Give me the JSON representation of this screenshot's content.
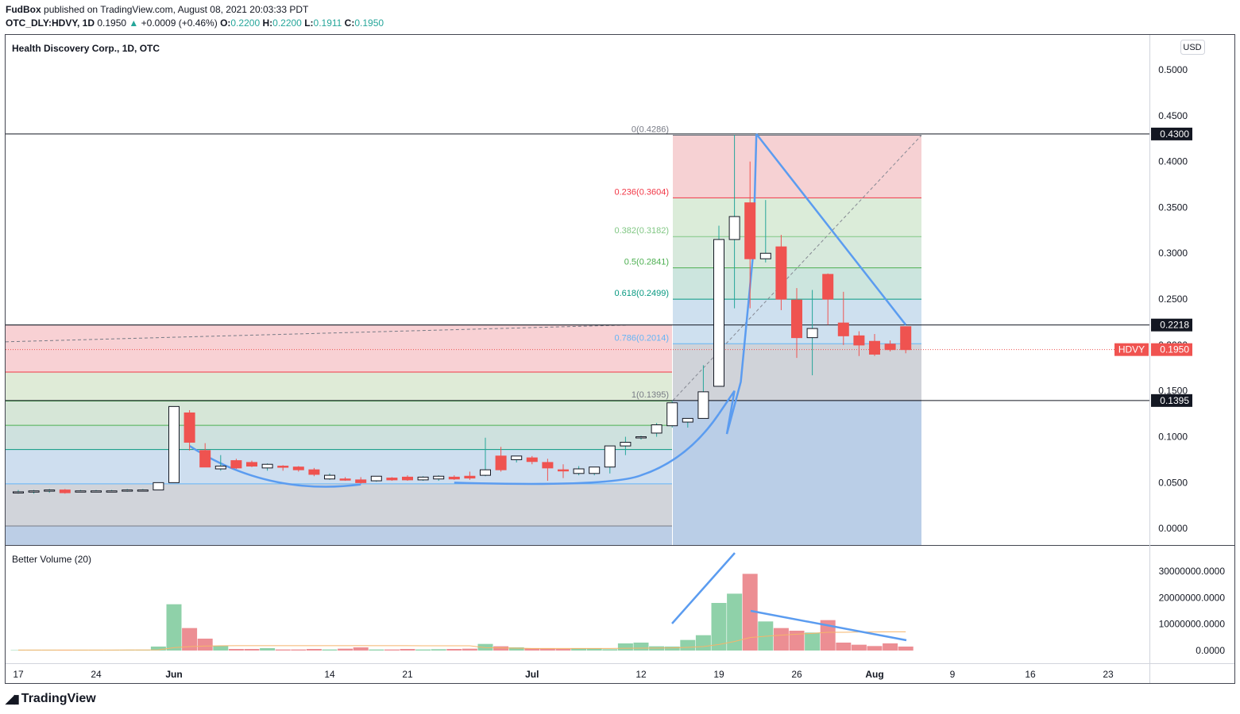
{
  "header": {
    "publisher": "FudBox",
    "published_text": "published on TradingView.com, August 08, 2021 20:03:33 PDT",
    "symbol": "OTC_DLY:HDVY, 1D",
    "last": "0.1950",
    "change_arrow": "▲",
    "change": "+0.0009 (+0.46%)",
    "o_label": "O:",
    "o": "0.2200",
    "h_label": "H:",
    "h": "0.2200",
    "l_label": "L:",
    "l": "0.1911",
    "c_label": "C:",
    "c": "0.1950"
  },
  "pane_title": "Health Discovery Corp., 1D, OTC",
  "currency": "USD",
  "volume_title": "Better Volume (20)",
  "brand": "TradingView",
  "colors": {
    "up": "#26a69a",
    "down": "#ef5350",
    "drawing": "#5b9cf0",
    "volume_up": "#8fd1a9",
    "volume_down": "#ec8e93",
    "ma": "#f5b56b"
  },
  "chart_data": {
    "type": "candlestick",
    "price_axis": {
      "ylim": [
        -0.018,
        0.538
      ],
      "ticks": [
        "0.5000",
        "0.4500",
        "0.4000",
        "0.3500",
        "0.3000",
        "0.2500",
        "0.2000",
        "0.1500",
        "0.1000",
        "0.0500",
        "0.0000"
      ],
      "tick_values": [
        0.5,
        0.45,
        0.4,
        0.35,
        0.3,
        0.25,
        0.2,
        0.15,
        0.1,
        0.05,
        0.0
      ]
    },
    "x_axis": {
      "labels": [
        "17",
        "24",
        "Jun",
        "14",
        "21",
        "Jul",
        "12",
        "19",
        "26",
        "Aug",
        "9",
        "16",
        "23"
      ],
      "label_bar_index": [
        0,
        5,
        10,
        20,
        25,
        33,
        40,
        45,
        50,
        55,
        60,
        65,
        70
      ]
    },
    "candles": [
      {
        "o": 0.04,
        "h": 0.042,
        "l": 0.038,
        "c": 0.04
      },
      {
        "o": 0.04,
        "h": 0.042,
        "l": 0.038,
        "c": 0.041
      },
      {
        "o": 0.041,
        "h": 0.043,
        "l": 0.039,
        "c": 0.042
      },
      {
        "o": 0.042,
        "h": 0.043,
        "l": 0.038,
        "c": 0.039
      },
      {
        "o": 0.041,
        "h": 0.042,
        "l": 0.04,
        "c": 0.041
      },
      {
        "o": 0.041,
        "h": 0.042,
        "l": 0.04,
        "c": 0.041
      },
      {
        "o": 0.041,
        "h": 0.042,
        "l": 0.04,
        "c": 0.041
      },
      {
        "o": 0.041,
        "h": 0.043,
        "l": 0.04,
        "c": 0.042
      },
      {
        "o": 0.042,
        "h": 0.043,
        "l": 0.041,
        "c": 0.042
      },
      {
        "o": 0.042,
        "h": 0.05,
        "l": 0.042,
        "c": 0.05
      },
      {
        "o": 0.05,
        "h": 0.133,
        "l": 0.05,
        "c": 0.133
      },
      {
        "o": 0.126,
        "h": 0.129,
        "l": 0.085,
        "c": 0.094
      },
      {
        "o": 0.085,
        "h": 0.093,
        "l": 0.067,
        "c": 0.067
      },
      {
        "o": 0.065,
        "h": 0.08,
        "l": 0.063,
        "c": 0.068
      },
      {
        "o": 0.074,
        "h": 0.076,
        "l": 0.065,
        "c": 0.066
      },
      {
        "o": 0.072,
        "h": 0.074,
        "l": 0.067,
        "c": 0.068
      },
      {
        "o": 0.066,
        "h": 0.071,
        "l": 0.063,
        "c": 0.07
      },
      {
        "o": 0.068,
        "h": 0.069,
        "l": 0.063,
        "c": 0.067
      },
      {
        "o": 0.067,
        "h": 0.068,
        "l": 0.062,
        "c": 0.064
      },
      {
        "o": 0.064,
        "h": 0.066,
        "l": 0.057,
        "c": 0.059
      },
      {
        "o": 0.054,
        "h": 0.06,
        "l": 0.053,
        "c": 0.058
      },
      {
        "o": 0.054,
        "h": 0.056,
        "l": 0.052,
        "c": 0.053
      },
      {
        "o": 0.053,
        "h": 0.056,
        "l": 0.049,
        "c": 0.05
      },
      {
        "o": 0.052,
        "h": 0.057,
        "l": 0.051,
        "c": 0.057
      },
      {
        "o": 0.055,
        "h": 0.056,
        "l": 0.052,
        "c": 0.053
      },
      {
        "o": 0.056,
        "h": 0.058,
        "l": 0.052,
        "c": 0.053
      },
      {
        "o": 0.053,
        "h": 0.057,
        "l": 0.052,
        "c": 0.056
      },
      {
        "o": 0.054,
        "h": 0.058,
        "l": 0.052,
        "c": 0.057
      },
      {
        "o": 0.056,
        "h": 0.058,
        "l": 0.053,
        "c": 0.054
      },
      {
        "o": 0.057,
        "h": 0.062,
        "l": 0.053,
        "c": 0.055
      },
      {
        "o": 0.058,
        "h": 0.099,
        "l": 0.057,
        "c": 0.064
      },
      {
        "o": 0.079,
        "h": 0.089,
        "l": 0.062,
        "c": 0.064
      },
      {
        "o": 0.075,
        "h": 0.079,
        "l": 0.072,
        "c": 0.079
      },
      {
        "o": 0.077,
        "h": 0.079,
        "l": 0.07,
        "c": 0.073
      },
      {
        "o": 0.072,
        "h": 0.076,
        "l": 0.052,
        "c": 0.066
      },
      {
        "o": 0.064,
        "h": 0.07,
        "l": 0.055,
        "c": 0.063
      },
      {
        "o": 0.06,
        "h": 0.068,
        "l": 0.058,
        "c": 0.065
      },
      {
        "o": 0.06,
        "h": 0.067,
        "l": 0.058,
        "c": 0.067
      },
      {
        "o": 0.067,
        "h": 0.09,
        "l": 0.06,
        "c": 0.09
      },
      {
        "o": 0.09,
        "h": 0.1,
        "l": 0.08,
        "c": 0.094
      },
      {
        "o": 0.1,
        "h": 0.101,
        "l": 0.097,
        "c": 0.1
      },
      {
        "o": 0.104,
        "h": 0.115,
        "l": 0.1,
        "c": 0.113
      },
      {
        "o": 0.112,
        "h": 0.139,
        "l": 0.11,
        "c": 0.137
      },
      {
        "o": 0.116,
        "h": 0.12,
        "l": 0.11,
        "c": 0.12
      },
      {
        "o": 0.12,
        "h": 0.178,
        "l": 0.12,
        "c": 0.149
      },
      {
        "o": 0.155,
        "h": 0.33,
        "l": 0.155,
        "c": 0.315
      },
      {
        "o": 0.315,
        "h": 0.429,
        "l": 0.24,
        "c": 0.34
      },
      {
        "o": 0.355,
        "h": 0.4,
        "l": 0.24,
        "c": 0.294
      },
      {
        "o": 0.294,
        "h": 0.358,
        "l": 0.29,
        "c": 0.3
      },
      {
        "o": 0.307,
        "h": 0.32,
        "l": 0.238,
        "c": 0.25
      },
      {
        "o": 0.249,
        "h": 0.262,
        "l": 0.186,
        "c": 0.208
      },
      {
        "o": 0.208,
        "h": 0.26,
        "l": 0.167,
        "c": 0.218
      },
      {
        "o": 0.277,
        "h": 0.278,
        "l": 0.222,
        "c": 0.25
      },
      {
        "o": 0.224,
        "h": 0.258,
        "l": 0.2,
        "c": 0.21
      },
      {
        "o": 0.21,
        "h": 0.215,
        "l": 0.188,
        "c": 0.2
      },
      {
        "o": 0.204,
        "h": 0.212,
        "l": 0.188,
        "c": 0.19
      },
      {
        "o": 0.201,
        "h": 0.205,
        "l": 0.193,
        "c": 0.195
      },
      {
        "o": 0.22,
        "h": 0.22,
        "l": 0.191,
        "c": 0.195
      }
    ],
    "volume_axis": {
      "ylim": [
        0,
        36000000
      ],
      "ticks": [
        "30000000.0000",
        "20000000.0000",
        "10000000.0000",
        "0.0000"
      ],
      "tick_values": [
        30000000,
        20000000,
        10000000,
        0
      ]
    },
    "volume": [
      150000,
      200000,
      200000,
      300000,
      200000,
      200000,
      200000,
      300000,
      300000,
      1500000,
      17500000,
      8500000,
      4500000,
      1800000,
      600000,
      600000,
      900000,
      400000,
      400000,
      600000,
      400000,
      700000,
      1200000,
      400000,
      400000,
      600000,
      400000,
      500000,
      600000,
      700000,
      2500000,
      1600000,
      1200000,
      800000,
      700000,
      600000,
      800000,
      800000,
      500000,
      2700000,
      3000000,
      1600000,
      1500000,
      4000000,
      5800000,
      18000000,
      21500000,
      29000000,
      11000000,
      8500000,
      7500000,
      6800000,
      11500000,
      3000000,
      2200000,
      1700000,
      2700000,
      1500000
    ],
    "volume_ma": [
      180000,
      180000,
      185000,
      190000,
      190000,
      195000,
      200000,
      210000,
      220000,
      280000,
      1100000,
      1500000,
      1700000,
      1800000,
      1850000,
      1850000,
      1850000,
      1850000,
      1850000,
      1850000,
      1850000,
      1850000,
      1850000,
      1850000,
      1850000,
      1850000,
      1800000,
      1800000,
      1800000,
      1800000,
      1100000,
      1000000,
      900000,
      800000,
      800000,
      800000,
      800000,
      800000,
      800000,
      850000,
      900000,
      950000,
      1000000,
      1200000,
      1500000,
      2300000,
      3400000,
      4900000,
      5400000,
      5800000,
      6200000,
      6500000,
      6900000,
      6900000,
      7000000,
      7000000,
      7100000,
      7100000
    ],
    "price_labels": [
      {
        "text": "0.4300",
        "value": 0.43,
        "style": "dark"
      },
      {
        "text": "0.2218",
        "value": 0.2218,
        "style": "dark"
      },
      {
        "text": "0.1395",
        "value": 0.1395,
        "style": "dark"
      },
      {
        "text": "0.1950",
        "value": 0.195,
        "style": "red",
        "prefix": "HDVY"
      }
    ],
    "fib_main": {
      "levels": [
        {
          "ratio": "0",
          "label": "0(0.4286)",
          "price": 0.4286,
          "color": "#787b86"
        },
        {
          "ratio": "0.236",
          "label": "0.236(0.3604)",
          "price": 0.3604,
          "color": "#f23645"
        },
        {
          "ratio": "0.382",
          "label": "0.382(0.3182)",
          "price": 0.3182,
          "color": "#81c784"
        },
        {
          "ratio": "0.5",
          "label": "0.5(0.2841)",
          "price": 0.2841,
          "color": "#4caf50"
        },
        {
          "ratio": "0.618",
          "label": "0.618(0.2499)",
          "price": 0.2499,
          "color": "#089981"
        },
        {
          "ratio": "0.786",
          "label": "0.786(0.2014)",
          "price": 0.2014,
          "color": "#64b5f6"
        },
        {
          "ratio": "1",
          "label": "1(0.1395)",
          "price": 0.1395,
          "color": "#787b86"
        }
      ]
    },
    "fib_left_levels": [
      0.2218,
      0.1705,
      0.1389,
      0.1125,
      0.0861,
      0.0487,
      0.0028
    ]
  }
}
